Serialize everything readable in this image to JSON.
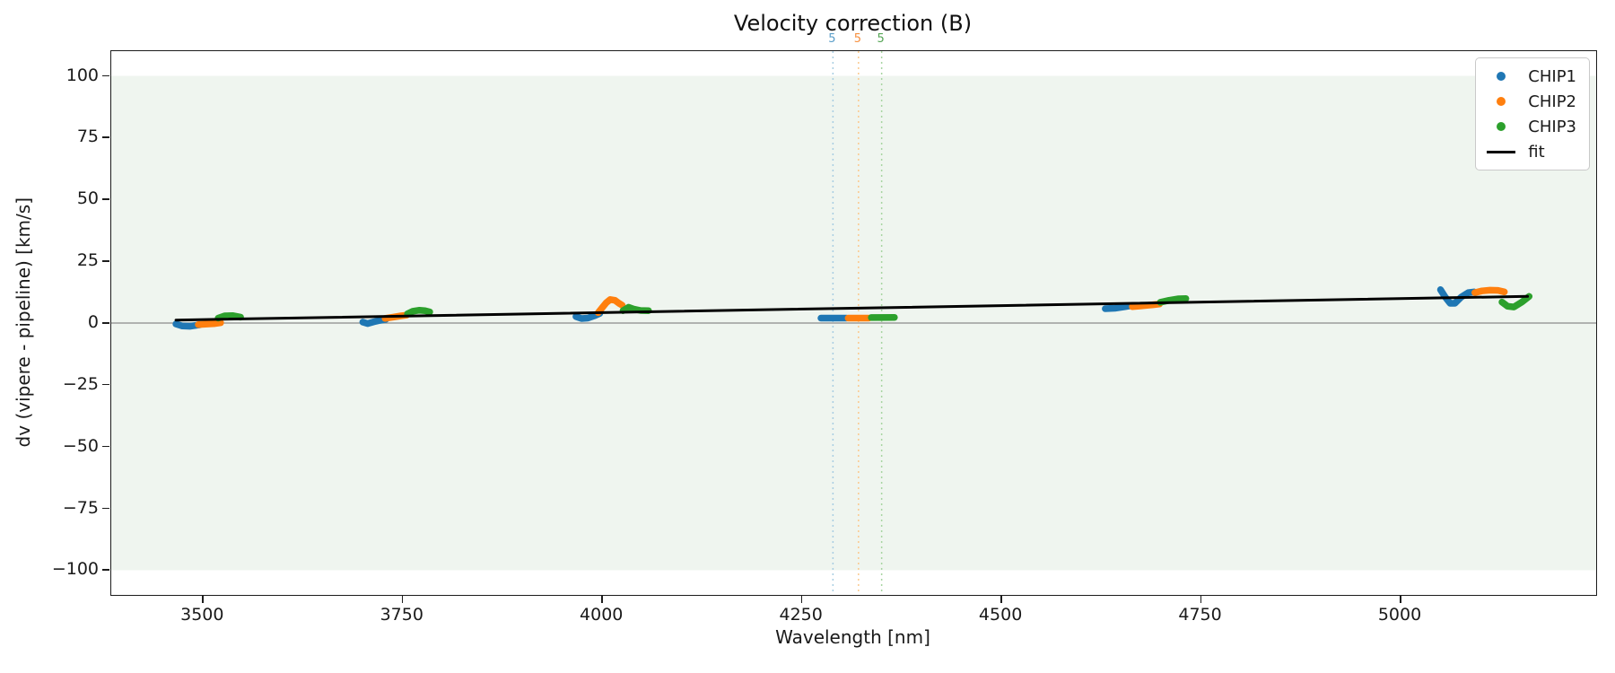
{
  "chart_data": {
    "type": "scatter",
    "title": "Velocity correction (B)",
    "xlabel": "Wavelength [nm]",
    "ylabel": "dv (vipere - pipeline) [km/s]",
    "xlim": [
      3385,
      5245
    ],
    "ylim": [
      -110,
      110
    ],
    "x_ticks": [
      3500,
      3750,
      4000,
      4250,
      4500,
      4750,
      5000
    ],
    "y_ticks": [
      100,
      75,
      50,
      25,
      0,
      -25,
      -50,
      -75,
      -100
    ],
    "grid": false,
    "background_band": {
      "ymin": -100,
      "ymax": 100,
      "color": "#eff5ef"
    },
    "zero_line": {
      "y": 0,
      "color": "#8a8a8a"
    },
    "vlines": [
      {
        "x": 4289,
        "label": "5",
        "line_color": "#a8cde2",
        "label_color": "#5b9ec9"
      },
      {
        "x": 4321,
        "label": "5",
        "line_color": "#fbc98e",
        "label_color": "#f79140"
      },
      {
        "x": 4350,
        "label": "5",
        "line_color": "#a8d5a2",
        "label_color": "#55a555"
      }
    ],
    "series": [
      {
        "name": "CHIP1",
        "color": "#1f77b4",
        "marker": "dot",
        "segments": [
          [
            [
              3466,
              -0.4
            ],
            [
              3474,
              -1.2
            ],
            [
              3484,
              -1.3
            ],
            [
              3496,
              -0.7
            ]
          ],
          [
            [
              3700,
              0.4
            ],
            [
              3706,
              -0.2
            ],
            [
              3714,
              0.5
            ],
            [
              3722,
              1.1
            ],
            [
              3729,
              1.5
            ]
          ],
          [
            [
              3967,
              2.6
            ],
            [
              3974,
              1.8
            ],
            [
              3982,
              2.0
            ],
            [
              3990,
              2.9
            ],
            [
              3997,
              3.9
            ]
          ],
          [
            [
              4274,
              2.0
            ],
            [
              4306,
              2.0
            ]
          ],
          [
            [
              4630,
              5.8
            ],
            [
              4642,
              6.0
            ],
            [
              4655,
              6.6
            ],
            [
              4665,
              7.2
            ]
          ],
          [
            [
              5050,
              13.5
            ],
            [
              5056,
              10.5
            ],
            [
              5062,
              8.0
            ],
            [
              5068,
              8.0
            ],
            [
              5076,
              10.5
            ],
            [
              5085,
              12.3
            ],
            [
              5092,
              12.6
            ]
          ]
        ]
      },
      {
        "name": "CHIP2",
        "color": "#ff7f0e",
        "marker": "dot",
        "segments": [
          [
            [
              3494,
              -0.6
            ],
            [
              3505,
              -0.4
            ],
            [
              3515,
              -0.2
            ],
            [
              3522,
              0.1
            ]
          ],
          [
            [
              3728,
              1.9
            ],
            [
              3738,
              2.4
            ],
            [
              3748,
              2.9
            ],
            [
              3755,
              3.2
            ]
          ],
          [
            [
              3995,
              4.2
            ],
            [
              4000,
              6.2
            ],
            [
              4005,
              8.2
            ],
            [
              4010,
              9.5
            ],
            [
              4016,
              9.2
            ],
            [
              4021,
              8.0
            ],
            [
              4025,
              7.2
            ]
          ],
          [
            [
              4308,
              2.0
            ],
            [
              4334,
              2.0
            ]
          ],
          [
            [
              4664,
              6.6
            ],
            [
              4678,
              7.0
            ],
            [
              4690,
              7.4
            ],
            [
              4698,
              7.7
            ]
          ],
          [
            [
              5093,
              12.3
            ],
            [
              5102,
              13.0
            ],
            [
              5112,
              13.3
            ],
            [
              5122,
              13.2
            ],
            [
              5130,
              12.6
            ]
          ]
        ]
      },
      {
        "name": "CHIP3",
        "color": "#2ca02c",
        "marker": "dot",
        "segments": [
          [
            [
              3519,
              2.0
            ],
            [
              3527,
              2.9
            ],
            [
              3537,
              3.0
            ],
            [
              3547,
              2.4
            ]
          ],
          [
            [
              3756,
              3.7
            ],
            [
              3763,
              4.8
            ],
            [
              3771,
              5.2
            ],
            [
              3778,
              5.0
            ],
            [
              3784,
              4.5
            ]
          ],
          [
            [
              4026,
              5.0
            ],
            [
              4033,
              6.4
            ],
            [
              4040,
              5.6
            ],
            [
              4048,
              5.1
            ],
            [
              4058,
              5.0
            ]
          ],
          [
            [
              4337,
              2.2
            ],
            [
              4366,
              2.3
            ]
          ],
          [
            [
              4699,
              8.4
            ],
            [
              4710,
              9.2
            ],
            [
              4722,
              9.8
            ],
            [
              4731,
              9.9
            ]
          ],
          [
            [
              5127,
              8.5
            ],
            [
              5134,
              6.8
            ],
            [
              5142,
              6.5
            ],
            [
              5152,
              8.5
            ],
            [
              5161,
              10.8
            ]
          ]
        ]
      }
    ],
    "fit": {
      "name": "fit",
      "color": "#000000",
      "points": [
        [
          3466,
          1.2
        ],
        [
          5159,
          10.8
        ]
      ]
    },
    "legend": {
      "position": "upper right",
      "entries": [
        {
          "label": "CHIP1",
          "swatch": "dot",
          "color": "#1f77b4"
        },
        {
          "label": "CHIP2",
          "swatch": "dot",
          "color": "#ff7f0e"
        },
        {
          "label": "CHIP3",
          "swatch": "dot",
          "color": "#2ca02c"
        },
        {
          "label": "fit",
          "swatch": "line",
          "color": "#000000"
        }
      ]
    }
  }
}
